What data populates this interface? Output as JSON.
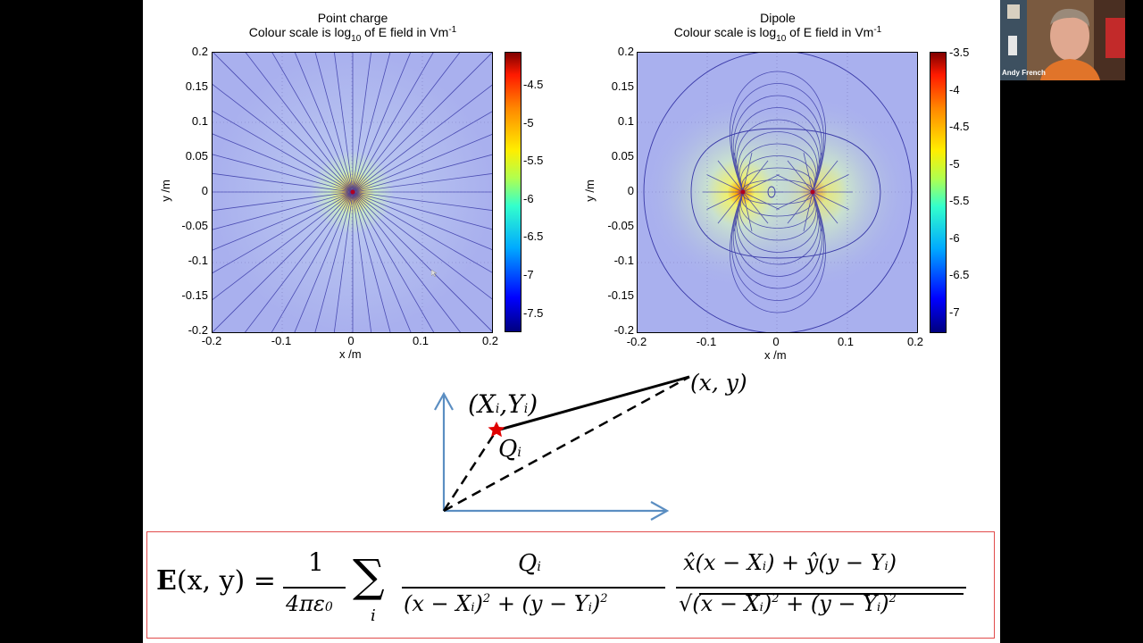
{
  "slide": {
    "left_plot": {
      "title": "Point charge",
      "subtitle_prefix": "Colour scale is log",
      "subtitle_sub": "10",
      "subtitle_suffix": " of E field in Vm",
      "subtitle_sup": "-1",
      "xlabel": "x /m",
      "ylabel": "y /m",
      "xticks": [
        "-0.2",
        "-0.1",
        "0",
        "0.1",
        "0.2"
      ],
      "yticks": [
        "0.2",
        "0.15",
        "0.1",
        "0.05",
        "0",
        "-0.05",
        "-0.1",
        "-0.15",
        "-0.2"
      ],
      "colorbar_ticks": [
        "-4.5",
        "-5",
        "-5.5",
        "-6",
        "-6.5",
        "-7",
        "-7.5"
      ]
    },
    "right_plot": {
      "title": "Dipole",
      "subtitle_prefix": "Colour scale is log",
      "subtitle_sub": "10",
      "subtitle_suffix": " of E field in Vm",
      "subtitle_sup": "-1",
      "xlabel": "x /m",
      "ylabel": "y /m",
      "xticks": [
        "-0.2",
        "-0.1",
        "0",
        "0.1",
        "0.2"
      ],
      "yticks": [
        "0.2",
        "0.15",
        "0.1",
        "0.05",
        "0",
        "-0.05",
        "-0.1",
        "-0.15",
        "-0.2"
      ],
      "colorbar_ticks": [
        "-3.5",
        "-4",
        "-4.5",
        "-5",
        "-5.5",
        "-6",
        "-6.5",
        "-7"
      ]
    },
    "diagram": {
      "point_label": "(X",
      "point_label_sub": "i",
      "point_label_mid": ",Y",
      "point_label_sub2": "i",
      "point_label_end": ")",
      "charge_label": "Q",
      "charge_label_sub": "i",
      "field_point_label": "(x, y)"
    },
    "equation": {
      "lhs": "E(x, y) =",
      "one": "1",
      "four_pi_eps": "4πε",
      "eps_sub": "0",
      "sum": "∑",
      "sum_index": "i",
      "q_num": "Q",
      "q_num_sub": "i",
      "den1": "(x − X",
      "den1_sub": "i",
      "den1_mid": ")",
      "den1_sup": "2",
      "den1_mid2": " + (y − Y",
      "den1_sub2": "i",
      "den1_end": ")",
      "den1_sup2": "2",
      "num2": "x̂(x − X",
      "num2_sub": "i",
      "num2_mid": ") + ŷ(y − Y",
      "num2_sub2": "i",
      "num2_end": ")",
      "den2": "√(x − X",
      "den2_sub": "i",
      "den2_mid": ")",
      "den2_sup": "2",
      "den2_mid2": " + (y − Y",
      "den2_sub2": "i",
      "den2_end": ")",
      "den2_sup2": "2"
    }
  },
  "webcam": {
    "participant_name": "Andy French"
  },
  "colors": {
    "equation_border": "#e14b4b",
    "axis_arrow": "#5b8ec2",
    "charge_star": "#e00000",
    "field_line": "#3a3aa8"
  }
}
